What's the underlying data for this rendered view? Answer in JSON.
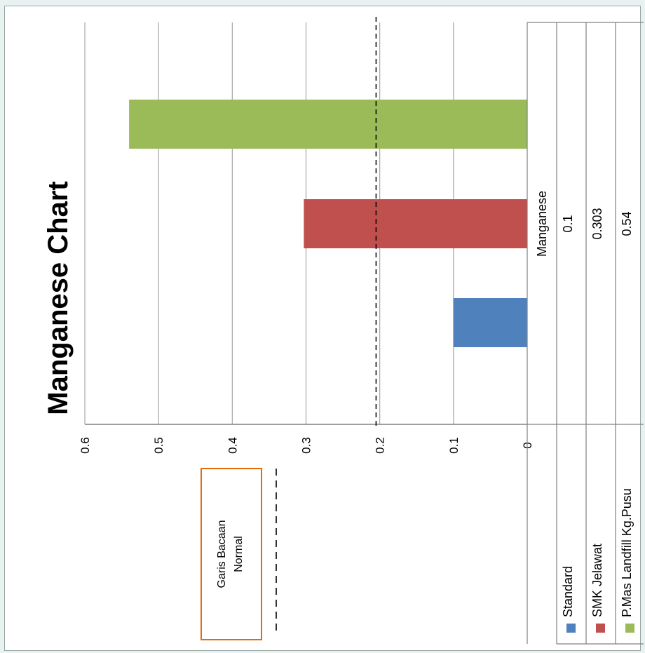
{
  "chart_data": {
    "type": "bar",
    "title": "Manganese Chart",
    "orientation": "rotated-90-clockwise",
    "categories": [
      "Manganese"
    ],
    "series": [
      {
        "name": "Standard",
        "values": [
          0.1
        ],
        "color": "#4f81bd"
      },
      {
        "name": "SMK Jelawat",
        "values": [
          0.303
        ],
        "color": "#c0504d"
      },
      {
        "name": "P.Mas Landfill Kg.Pusu",
        "values": [
          0.54
        ],
        "color": "#9bbb59"
      }
    ],
    "ylim": [
      0,
      0.6
    ],
    "ticks": [
      "0",
      "0.1",
      "0.2",
      "0.3",
      "0.4",
      "0.5",
      "0.6"
    ],
    "grid": true,
    "reference_line": {
      "label": "Garis Bacaan Normal",
      "value": 0.205,
      "style": "dashed"
    },
    "data_table": {
      "header": "Manganese",
      "rows": [
        {
          "series": "Standard",
          "value": "0.1"
        },
        {
          "series": "SMK Jelawat",
          "value": "0.303"
        },
        {
          "series": "P.Mas Landfill Kg.Pusu",
          "value": "0.54"
        }
      ]
    },
    "colors": {
      "legend_box_border": "#e36c0a",
      "grid": "#a6a6a6",
      "axis": "#808080"
    }
  }
}
